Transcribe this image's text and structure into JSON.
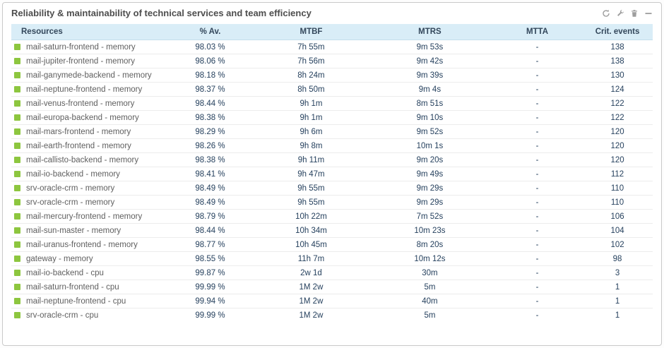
{
  "widget": {
    "title": "Reliability & maintainability of technical services and team efficiency",
    "toolbar": [
      {
        "name": "refresh-icon"
      },
      {
        "name": "wrench-icon"
      },
      {
        "name": "trash-icon"
      },
      {
        "name": "collapse-icon"
      }
    ]
  },
  "colors": {
    "status_ok": "#8dc63f",
    "header_bg": "#d9edf7",
    "icon_gray": "#9e9e9e"
  },
  "table": {
    "columns": [
      "Resources",
      "% Av.",
      "MTBF",
      "MTRS",
      "MTTA",
      "Crit. events"
    ],
    "rows": [
      {
        "resource": "mail-saturn-frontend - memory",
        "availability": "98.03 %",
        "mtbf": "7h 55m",
        "mtrs": "9m 53s",
        "mtta": "-",
        "crit_events": "138"
      },
      {
        "resource": "mail-jupiter-frontend - memory",
        "availability": "98.06 %",
        "mtbf": "7h 56m",
        "mtrs": "9m 42s",
        "mtta": "-",
        "crit_events": "138"
      },
      {
        "resource": "mail-ganymede-backend - memory",
        "availability": "98.18 %",
        "mtbf": "8h 24m",
        "mtrs": "9m 39s",
        "mtta": "-",
        "crit_events": "130"
      },
      {
        "resource": "mail-neptune-frontend - memory",
        "availability": "98.37 %",
        "mtbf": "8h 50m",
        "mtrs": "9m 4s",
        "mtta": "-",
        "crit_events": "124"
      },
      {
        "resource": "mail-venus-frontend - memory",
        "availability": "98.44 %",
        "mtbf": "9h 1m",
        "mtrs": "8m 51s",
        "mtta": "-",
        "crit_events": "122"
      },
      {
        "resource": "mail-europa-backend - memory",
        "availability": "98.38 %",
        "mtbf": "9h 1m",
        "mtrs": "9m 10s",
        "mtta": "-",
        "crit_events": "122"
      },
      {
        "resource": "mail-mars-frontend - memory",
        "availability": "98.29 %",
        "mtbf": "9h 6m",
        "mtrs": "9m 52s",
        "mtta": "-",
        "crit_events": "120"
      },
      {
        "resource": "mail-earth-frontend - memory",
        "availability": "98.26 %",
        "mtbf": "9h 8m",
        "mtrs": "10m 1s",
        "mtta": "-",
        "crit_events": "120"
      },
      {
        "resource": "mail-callisto-backend - memory",
        "availability": "98.38 %",
        "mtbf": "9h 11m",
        "mtrs": "9m 20s",
        "mtta": "-",
        "crit_events": "120"
      },
      {
        "resource": "mail-io-backend - memory",
        "availability": "98.41 %",
        "mtbf": "9h 47m",
        "mtrs": "9m 49s",
        "mtta": "-",
        "crit_events": "112"
      },
      {
        "resource": "srv-oracle-crm - memory",
        "availability": "98.49 %",
        "mtbf": "9h 55m",
        "mtrs": "9m 29s",
        "mtta": "-",
        "crit_events": "110"
      },
      {
        "resource": "srv-oracle-crm - memory",
        "availability": "98.49 %",
        "mtbf": "9h 55m",
        "mtrs": "9m 29s",
        "mtta": "-",
        "crit_events": "110"
      },
      {
        "resource": "mail-mercury-frontend - memory",
        "availability": "98.79 %",
        "mtbf": "10h 22m",
        "mtrs": "7m 52s",
        "mtta": "-",
        "crit_events": "106"
      },
      {
        "resource": "mail-sun-master - memory",
        "availability": "98.44 %",
        "mtbf": "10h 34m",
        "mtrs": "10m 23s",
        "mtta": "-",
        "crit_events": "104"
      },
      {
        "resource": "mail-uranus-frontend - memory",
        "availability": "98.77 %",
        "mtbf": "10h 45m",
        "mtrs": "8m 20s",
        "mtta": "-",
        "crit_events": "102"
      },
      {
        "resource": "gateway - memory",
        "availability": "98.55 %",
        "mtbf": "11h 7m",
        "mtrs": "10m 12s",
        "mtta": "-",
        "crit_events": "98"
      },
      {
        "resource": "mail-io-backend - cpu",
        "availability": "99.87 %",
        "mtbf": "2w 1d",
        "mtrs": "30m",
        "mtta": "-",
        "crit_events": "3"
      },
      {
        "resource": "mail-saturn-frontend - cpu",
        "availability": "99.99 %",
        "mtbf": "1M 2w",
        "mtrs": "5m",
        "mtta": "-",
        "crit_events": "1"
      },
      {
        "resource": "mail-neptune-frontend - cpu",
        "availability": "99.94 %",
        "mtbf": "1M 2w",
        "mtrs": "40m",
        "mtta": "-",
        "crit_events": "1"
      },
      {
        "resource": "srv-oracle-crm - cpu",
        "availability": "99.99 %",
        "mtbf": "1M 2w",
        "mtrs": "5m",
        "mtta": "-",
        "crit_events": "1"
      }
    ]
  }
}
